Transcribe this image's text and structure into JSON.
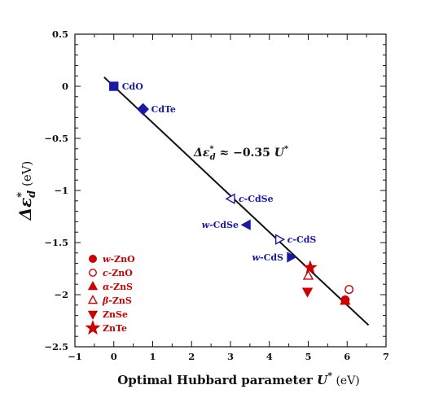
{
  "chart_data": {
    "type": "scatter",
    "xlabel_text": "Optimal Hubbard parameter",
    "xlabel_symbol": "U",
    "xlabel_sup": "*",
    "xlabel_unit": "(eV)",
    "ylabel_symbol": "Δε",
    "ylabel_sup": "*",
    "ylabel_sub": "d",
    "ylabel_unit": "(eV)",
    "xlim": [
      -1,
      7
    ],
    "ylim": [
      -2.5,
      0.5
    ],
    "xticks": [
      "−1",
      "0",
      "1",
      "2",
      "3",
      "4",
      "5",
      "6",
      "7"
    ],
    "yticks": [
      "0.5",
      "0",
      "−0.5",
      "−1",
      "−1.5",
      "−2",
      "−2.5"
    ],
    "fit_line": {
      "slope": -0.35,
      "x_range": [
        -0.25,
        6.55
      ],
      "intercept_at_zero": 0.0
    },
    "equation": {
      "lhs": "Δε",
      "sup": "*",
      "sub": "d",
      "rhs": "≈ −0.35",
      "var": "U",
      "varsup": "*"
    },
    "series": [
      {
        "label": "CdO",
        "x": 0.0,
        "y": 0.0,
        "marker": "square",
        "color": "#1a1aa6",
        "filled": true,
        "label_parts": [
          {
            "t": "CdO",
            "i": false
          }
        ]
      },
      {
        "label": "CdTe",
        "x": 0.75,
        "y": -0.22,
        "marker": "diamond",
        "color": "#1a1aa6",
        "filled": true,
        "label_parts": [
          {
            "t": "CdTe",
            "i": false
          }
        ]
      },
      {
        "label": "c-CdSe",
        "x": 3.02,
        "y": -1.08,
        "marker": "tri-left",
        "color": "#1a1aa6",
        "filled": false,
        "label_parts": [
          {
            "t": "c",
            "i": true
          },
          {
            "t": "-CdSe",
            "i": false
          }
        ]
      },
      {
        "label": "w-CdSe",
        "x": 3.42,
        "y": -1.33,
        "marker": "tri-left",
        "color": "#1a1aa6",
        "filled": true,
        "label_parts": [
          {
            "t": "w",
            "i": true
          },
          {
            "t": "-CdSe",
            "i": false
          }
        ]
      },
      {
        "label": "c-CdS",
        "x": 4.25,
        "y": -1.47,
        "marker": "tri-right",
        "color": "#1a1aa6",
        "filled": false,
        "label_parts": [
          {
            "t": "c",
            "i": true
          },
          {
            "t": "-CdS",
            "i": false
          }
        ]
      },
      {
        "label": "w-CdS",
        "x": 4.55,
        "y": -1.64,
        "marker": "tri-right",
        "color": "#1a1aa6",
        "filled": true,
        "label_parts": [
          {
            "t": "w",
            "i": true
          },
          {
            "t": "-CdS",
            "i": false
          }
        ]
      },
      {
        "label": "w-ZnO",
        "x": 5.95,
        "y": -2.05,
        "marker": "circle",
        "color": "#cc0000",
        "filled": true
      },
      {
        "label": "c-ZnO",
        "x": 6.05,
        "y": -1.95,
        "marker": "circle",
        "color": "#cc0000",
        "filled": false
      },
      {
        "label": "α-ZnS",
        "x": 5.95,
        "y": -2.06,
        "marker": "tri-up",
        "color": "#cc0000",
        "filled": true
      },
      {
        "label": "β-ZnS",
        "x": 5.0,
        "y": -1.82,
        "marker": "tri-up",
        "color": "#cc0000",
        "filled": false
      },
      {
        "label": "ZnSe",
        "x": 4.98,
        "y": -1.97,
        "marker": "tri-down",
        "color": "#cc0000",
        "filled": true
      },
      {
        "label": "ZnTe",
        "x": 5.05,
        "y": -1.74,
        "marker": "star",
        "color": "#cc0000",
        "filled": true
      }
    ],
    "legend": {
      "position": "bottom-left",
      "items": [
        {
          "marker": "circle",
          "filled": true,
          "parts": [
            {
              "t": "w",
              "i": true
            },
            {
              "t": "-ZnO",
              "i": false
            }
          ]
        },
        {
          "marker": "circle",
          "filled": false,
          "parts": [
            {
              "t": "c",
              "i": true
            },
            {
              "t": "-ZnO",
              "i": false
            }
          ]
        },
        {
          "marker": "tri-up",
          "filled": true,
          "parts": [
            {
              "t": "α",
              "i": true
            },
            {
              "t": "-ZnS",
              "i": false
            }
          ]
        },
        {
          "marker": "tri-up",
          "filled": false,
          "parts": [
            {
              "t": "β",
              "i": true
            },
            {
              "t": "-ZnS",
              "i": false
            }
          ]
        },
        {
          "marker": "tri-down",
          "filled": true,
          "parts": [
            {
              "t": "ZnSe",
              "i": false
            }
          ]
        },
        {
          "marker": "star",
          "filled": true,
          "parts": [
            {
              "t": "ZnTe",
              "i": false
            }
          ]
        }
      ],
      "color": "#cc0000"
    },
    "grid": false
  }
}
